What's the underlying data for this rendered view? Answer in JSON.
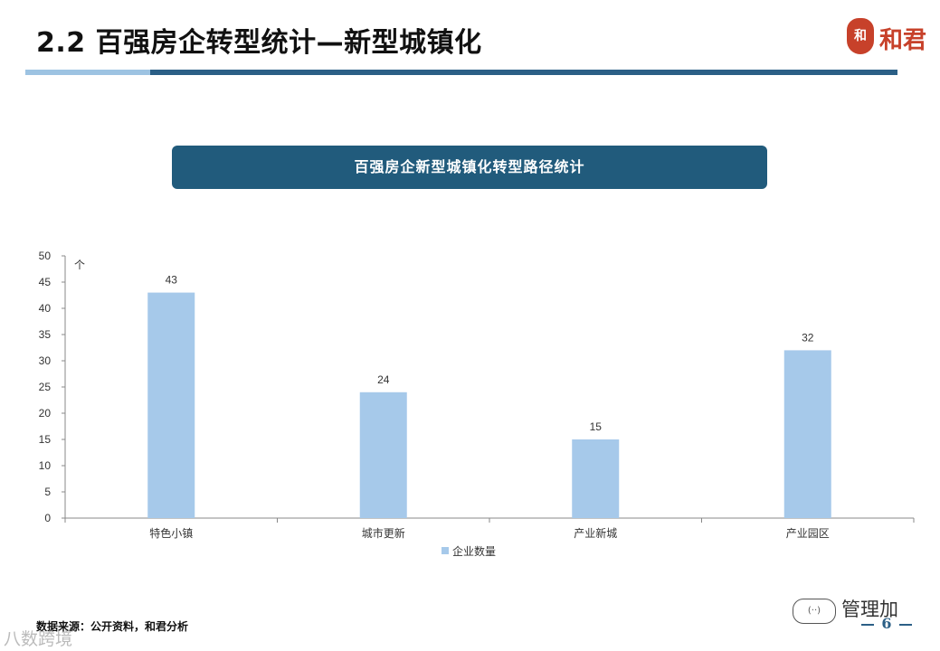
{
  "page": {
    "title": "2.2 百强房企转型统计—新型城镇化",
    "logo_mark": "和",
    "logo_text": "和君",
    "banner": "百强房企新型城镇化转型路径统计",
    "source": "数据来源：公开资料，和君分析",
    "watermark_top": "管理加",
    "watermark_bottom": "八数跨境",
    "page_number": "6"
  },
  "colors": {
    "bar": "#a6c9ea",
    "banner_bg": "#215b7c",
    "rule_dark": "#2b5f86",
    "rule_light": "#9dc3e2",
    "logo_red": "#c7412a"
  },
  "chart_data": {
    "type": "bar",
    "title": "百强房企新型城镇化转型路径统计",
    "ylabel": "个",
    "xlabel": "",
    "ylim": [
      0,
      50
    ],
    "yticks": [
      0,
      5,
      10,
      15,
      20,
      25,
      30,
      35,
      40,
      45,
      50
    ],
    "categories": [
      "特色小镇",
      "城市更新",
      "产业新城",
      "产业园区"
    ],
    "series": [
      {
        "name": "企业数量",
        "values": [
          43,
          24,
          15,
          32
        ]
      }
    ],
    "data_labels": true,
    "legend_position": "bottom",
    "grid": false
  }
}
